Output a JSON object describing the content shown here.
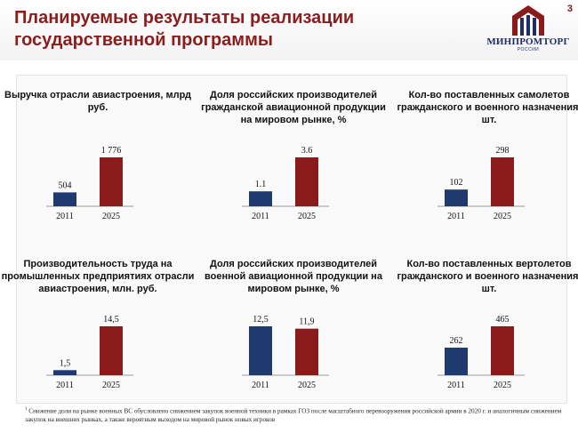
{
  "header": {
    "title": "Планируемые результаты реализации государственной программы",
    "page_number": "3",
    "logo_text": "МИНПРОМТОРГ",
    "logo_sub": "РОССИИ"
  },
  "colors": {
    "bar_2011": "#1f3a6e",
    "bar_2025": "#8b1a1a",
    "title": "#8b1d1d"
  },
  "chart_data": [
    {
      "type": "bar",
      "title": "Выручка отрасли авиастроения, млрд руб.",
      "categories": [
        "2011",
        "2025"
      ],
      "values": [
        504,
        1776
      ],
      "labels": [
        "504",
        "1 776"
      ]
    },
    {
      "type": "bar",
      "title": "Доля российских производителей гражданской авиационной продукции на мировом рынке, %",
      "categories": [
        "2011",
        "2025"
      ],
      "values": [
        1.1,
        3.6
      ],
      "labels": [
        "1.1",
        "3.6"
      ]
    },
    {
      "type": "bar",
      "title": "Кол-во поставленных самолетов гражданского и военного назначения, шт.",
      "categories": [
        "2011",
        "2025"
      ],
      "values": [
        102,
        298
      ],
      "labels": [
        "102",
        "298"
      ]
    },
    {
      "type": "bar",
      "title": "Производительность труда на промышленных предприятиях отрасли авиастроения, млн. руб.",
      "categories": [
        "2011",
        "2025"
      ],
      "values": [
        1.5,
        14.5
      ],
      "labels": [
        "1,5",
        "14,5"
      ]
    },
    {
      "type": "bar",
      "title": "Доля российских производителей военной авиационной продукции на мировом рынке, %",
      "categories": [
        "2011",
        "2025"
      ],
      "values": [
        12.5,
        11.9
      ],
      "labels": [
        "12,5",
        "11,9"
      ]
    },
    {
      "type": "bar",
      "title": "Кол-во поставленных вертолетов гражданского и военного назначения, шт.",
      "categories": [
        "2011",
        "2025"
      ],
      "values": [
        262,
        465
      ],
      "labels": [
        "262",
        "465"
      ]
    }
  ],
  "footnote": {
    "marker": "1",
    "text": "Снижение доли на рынке военных ВС обусловлено снижением закупок военной техники в рамках ГОЗ после масштабного перевооружения российской армии в 2020 г. и аналогичным снижением закупок на внешних рынках, а также вероятным выходом на мировой рынок новых игроков"
  }
}
